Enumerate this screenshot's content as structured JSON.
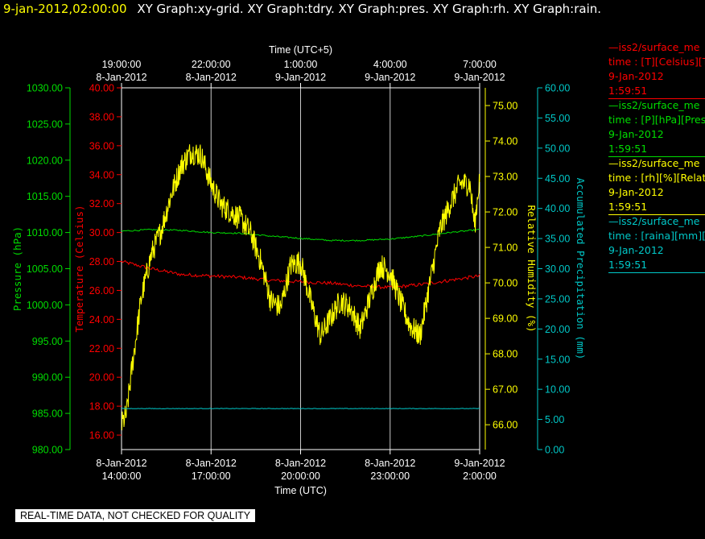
{
  "header": {
    "timestamp": "9-jan-2012,02:00:00",
    "graph_names": "XY Graph:xy-grid.  XY Graph:tdry.  XY Graph:pres.  XY Graph:rh.  XY Graph:rain."
  },
  "colors": {
    "temperature": "#ff0000",
    "pressure": "#00dd00",
    "humidity": "#ffff00",
    "precipitation": "#00c8c8",
    "frame": "#ffffff",
    "grid": "#c8c8c8",
    "background": "#000000"
  },
  "legend": [
    {
      "name": "—iss2/surface_me",
      "detail": "time : [T][Celsius][T",
      "date": "9-Jan-2012",
      "time": "1:59:51",
      "color": "#ff0000"
    },
    {
      "name": "—iss2/surface_me",
      "detail": "time : [P][hPa][Pres",
      "date": "9-Jan-2012",
      "time": "1:59:51",
      "color": "#00dd00"
    },
    {
      "name": "—iss2/surface_me",
      "detail": "time : [rh][%][Relati",
      "date": "9-Jan-2012",
      "time": "1:59:51",
      "color": "#ffff00"
    },
    {
      "name": "—iss2/surface_me",
      "detail": "time : [raina][mm][A",
      "date": "9-Jan-2012",
      "time": "1:59:51",
      "color": "#00c8c8"
    }
  ],
  "notice": "REAL-TIME DATA, NOT CHECKED FOR QUALITY",
  "chart_data": {
    "type": "line",
    "grid": true,
    "x": {
      "label_bottom": "Time (UTC)",
      "label_top": "Time (UTC+5)",
      "range": [
        "8-Jan-2012 14:00:00",
        "9-Jan-2012 02:00:00"
      ],
      "ticks_bottom": [
        {
          "date": "8-Jan-2012",
          "time": "14:00:00"
        },
        {
          "date": "8-Jan-2012",
          "time": "17:00:00"
        },
        {
          "date": "8-Jan-2012",
          "time": "20:00:00"
        },
        {
          "date": "8-Jan-2012",
          "time": "23:00:00"
        },
        {
          "date": "9-Jan-2012",
          "time": "2:00:00"
        }
      ],
      "ticks_top": [
        {
          "time": "19:00:00",
          "date": "8-Jan-2012"
        },
        {
          "time": "22:00:00",
          "date": "8-Jan-2012"
        },
        {
          "time": "1:00:00",
          "date": "9-Jan-2012"
        },
        {
          "time": "4:00:00",
          "date": "9-Jan-2012"
        },
        {
          "time": "7:00:00",
          "date": "9-Jan-2012"
        }
      ]
    },
    "axes": {
      "pressure": {
        "label": "Pressure (hPa)",
        "range": [
          980,
          1030
        ],
        "ticks": [
          "980.00",
          "985.00",
          "990.00",
          "995.00",
          "1000.00",
          "1005.00",
          "1010.00",
          "1015.00",
          "1020.00",
          "1025.00",
          "1030.00"
        ]
      },
      "temperature": {
        "label": "Temperature (Celsius)",
        "range": [
          15,
          40
        ],
        "ticks": [
          "16.00",
          "18.00",
          "20.00",
          "22.00",
          "24.00",
          "26.00",
          "28.00",
          "30.00",
          "32.00",
          "34.00",
          "36.00",
          "38.00",
          "40.00"
        ]
      },
      "humidity": {
        "label": "Relative Humidity (%)",
        "range": [
          65.3,
          75.5
        ],
        "ticks": [
          "66.00",
          "67.00",
          "68.00",
          "69.00",
          "70.00",
          "71.00",
          "72.00",
          "73.00",
          "74.00",
          "75.00"
        ]
      },
      "precipitation": {
        "label": "Accumulated Precipitation (mm)",
        "range": [
          0,
          60
        ],
        "ticks": [
          "0.00",
          "5.00",
          "10.00",
          "15.00",
          "20.00",
          "25.00",
          "30.00",
          "35.00",
          "40.00",
          "45.00",
          "50.00",
          "55.00",
          "60.00"
        ]
      }
    },
    "series": [
      {
        "name": "T",
        "axis": "temperature",
        "color": "#ff0000",
        "noise": 0.12,
        "points": [
          [
            "8-Jan-2012 14:00",
            28.0
          ],
          [
            "8-Jan-2012 15:00",
            27.5
          ],
          [
            "8-Jan-2012 16:00",
            27.1
          ],
          [
            "8-Jan-2012 17:00",
            27.0
          ],
          [
            "8-Jan-2012 18:00",
            26.9
          ],
          [
            "8-Jan-2012 19:00",
            26.7
          ],
          [
            "8-Jan-2012 20:00",
            26.6
          ],
          [
            "8-Jan-2012 21:00",
            26.5
          ],
          [
            "8-Jan-2012 22:00",
            26.3
          ],
          [
            "8-Jan-2012 23:00",
            26.2
          ],
          [
            "9-Jan-2012 00:00",
            26.4
          ],
          [
            "9-Jan-2012 01:00",
            26.7
          ],
          [
            "9-Jan-2012 02:00",
            27.0
          ]
        ]
      },
      {
        "name": "P",
        "axis": "pressure",
        "color": "#00dd00",
        "noise": 0.1,
        "points": [
          [
            "8-Jan-2012 14:00",
            1010.2
          ],
          [
            "8-Jan-2012 15:00",
            1010.4
          ],
          [
            "8-Jan-2012 16:00",
            1010.3
          ],
          [
            "8-Jan-2012 17:00",
            1010.0
          ],
          [
            "8-Jan-2012 18:00",
            1009.9
          ],
          [
            "8-Jan-2012 19:00",
            1009.5
          ],
          [
            "8-Jan-2012 20:00",
            1009.2
          ],
          [
            "8-Jan-2012 21:00",
            1008.9
          ],
          [
            "8-Jan-2012 22:00",
            1008.9
          ],
          [
            "8-Jan-2012 23:00",
            1009.1
          ],
          [
            "9-Jan-2012 00:00",
            1009.5
          ],
          [
            "9-Jan-2012 01:00",
            1010.0
          ],
          [
            "9-Jan-2012 02:00",
            1010.4
          ]
        ]
      },
      {
        "name": "rh",
        "axis": "humidity",
        "color": "#ffff00",
        "noise": 0.35,
        "points": [
          [
            "8-Jan-2012 14:00",
            66.0
          ],
          [
            "8-Jan-2012 14:10",
            66.3
          ],
          [
            "8-Jan-2012 14:20",
            67.5
          ],
          [
            "8-Jan-2012 14:40",
            69.6
          ],
          [
            "8-Jan-2012 15:00",
            70.8
          ],
          [
            "8-Jan-2012 15:20",
            71.5
          ],
          [
            "8-Jan-2012 15:40",
            72.5
          ],
          [
            "8-Jan-2012 16:00",
            73.3
          ],
          [
            "8-Jan-2012 16:20",
            73.7
          ],
          [
            "8-Jan-2012 16:40",
            73.6
          ],
          [
            "8-Jan-2012 17:00",
            72.8
          ],
          [
            "8-Jan-2012 17:20",
            72.2
          ],
          [
            "8-Jan-2012 17:40",
            72.0
          ],
          [
            "8-Jan-2012 18:00",
            71.8
          ],
          [
            "8-Jan-2012 18:20",
            71.4
          ],
          [
            "8-Jan-2012 18:40",
            70.6
          ],
          [
            "8-Jan-2012 19:00",
            69.5
          ],
          [
            "8-Jan-2012 19:20",
            69.3
          ],
          [
            "8-Jan-2012 19:40",
            70.5
          ],
          [
            "8-Jan-2012 20:00",
            70.6
          ],
          [
            "8-Jan-2012 20:20",
            69.5
          ],
          [
            "8-Jan-2012 20:40",
            68.5
          ],
          [
            "8-Jan-2012 21:00",
            69.0
          ],
          [
            "8-Jan-2012 21:20",
            69.5
          ],
          [
            "8-Jan-2012 21:40",
            69.3
          ],
          [
            "8-Jan-2012 22:00",
            68.7
          ],
          [
            "8-Jan-2012 22:20",
            69.6
          ],
          [
            "8-Jan-2012 22:40",
            70.5
          ],
          [
            "8-Jan-2012 23:00",
            70.3
          ],
          [
            "8-Jan-2012 23:20",
            69.5
          ],
          [
            "8-Jan-2012 23:40",
            68.8
          ],
          [
            "9-Jan-2012 00:00",
            68.5
          ],
          [
            "9-Jan-2012 00:20",
            70.0
          ],
          [
            "9-Jan-2012 00:40",
            71.5
          ],
          [
            "9-Jan-2012 01:00",
            72.2
          ],
          [
            "9-Jan-2012 01:20",
            72.8
          ],
          [
            "9-Jan-2012 01:40",
            72.8
          ],
          [
            "9-Jan-2012 01:50",
            71.6
          ],
          [
            "9-Jan-2012 02:00",
            73.0
          ]
        ]
      },
      {
        "name": "raina",
        "axis": "precipitation",
        "color": "#00c8c8",
        "noise": 0.04,
        "points": [
          [
            "8-Jan-2012 14:00",
            6.8
          ],
          [
            "9-Jan-2012 02:00",
            6.8
          ]
        ]
      }
    ]
  }
}
